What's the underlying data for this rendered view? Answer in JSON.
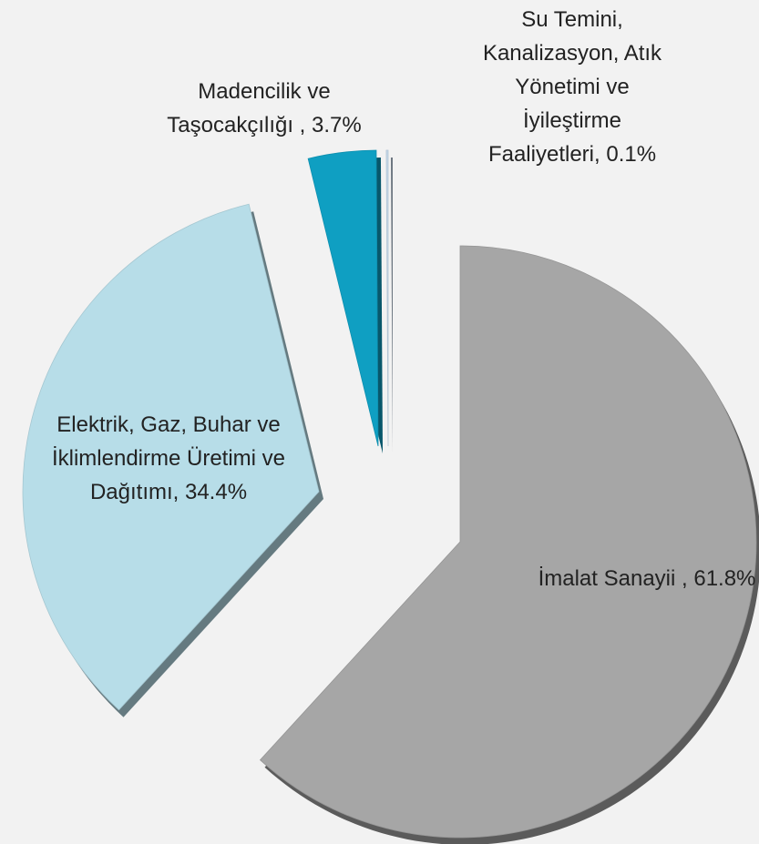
{
  "chart_data": {
    "type": "pie",
    "categories": [
      "İmalat Sanayii ,",
      "Elektrik, Gaz, Buhar ve İklimlendirme Üretimi ve Dağıtımı,",
      "Madencilik ve Taşocakçılığı ,",
      "Su Temini, Kanalizasyon, Atık Yönetimi ve İyileştirme Faaliyetleri,"
    ],
    "values": [
      61.8,
      34.4,
      3.7,
      0.1
    ],
    "value_labels": [
      "61.8%",
      "34.4%",
      "3.7%",
      "0.1%"
    ],
    "colors": [
      "#a6a6a6",
      "#b7dde8",
      "#0f9fc2",
      "#c6d9ea"
    ]
  }
}
